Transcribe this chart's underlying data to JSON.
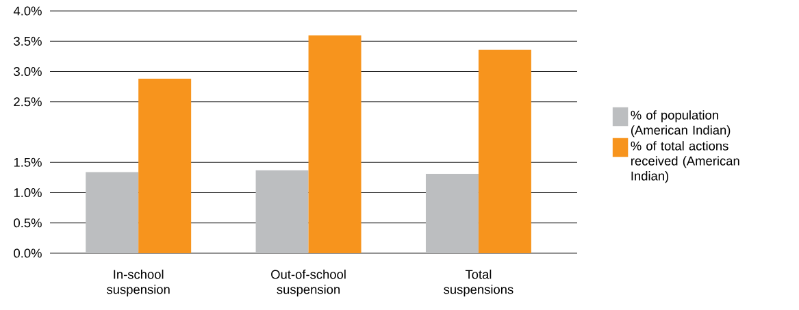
{
  "chart_data": {
    "type": "bar",
    "categories": [
      "In-school suspension",
      "Out-of-school suspension",
      "Total suspensions"
    ],
    "series": [
      {
        "name": "% of population (American Indian)",
        "color": "#bcbec0",
        "values": [
          1.34,
          1.37,
          1.31
        ]
      },
      {
        "name": "% of total actions received (American Indian)",
        "color": "#f7941d",
        "values": [
          2.88,
          3.6,
          3.36
        ]
      }
    ],
    "ylim": [
      0,
      4
    ],
    "yticks": [
      {
        "value": 0,
        "label": "0.0%"
      },
      {
        "value": 0.5,
        "label": "0.5%"
      },
      {
        "value": 1,
        "label": "1.0%"
      },
      {
        "value": 1.5,
        "label": "1.5%"
      },
      {
        "value": 2.5,
        "label": "2.5%"
      },
      {
        "value": 3,
        "label": "3.0%"
      },
      {
        "value": 3.5,
        "label": "3.5%"
      },
      {
        "value": 4,
        "label": "4.0%"
      }
    ],
    "grid": "y",
    "legend": "right"
  }
}
